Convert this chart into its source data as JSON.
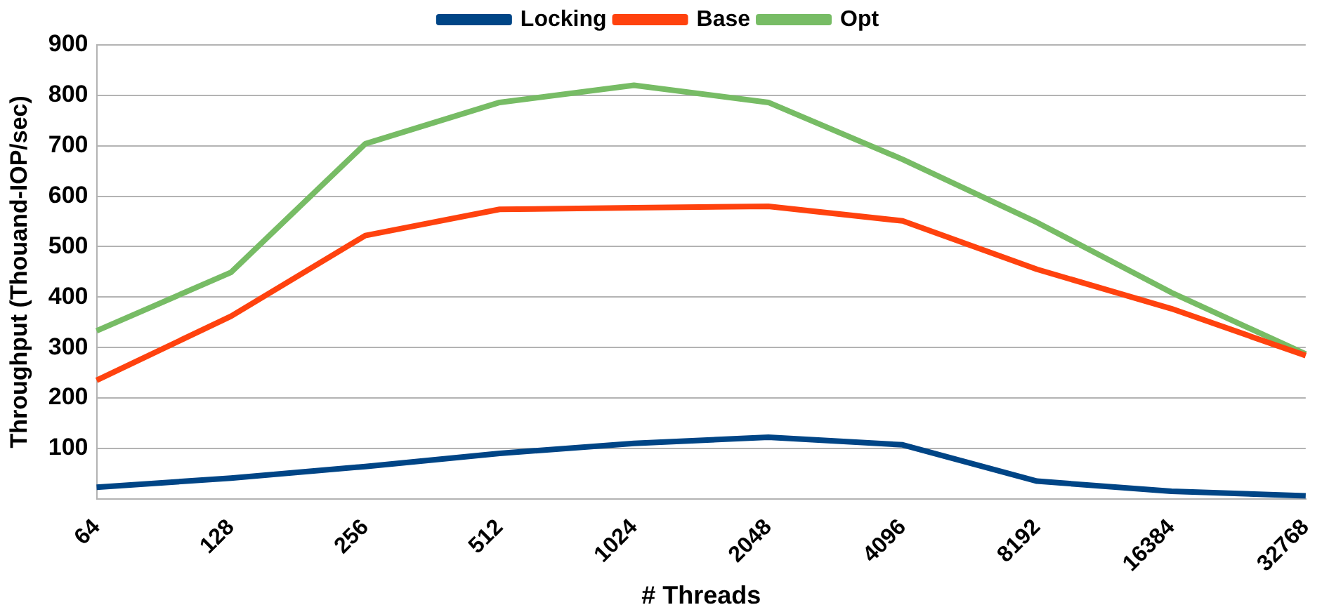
{
  "chart_data": {
    "type": "line",
    "xlabel": "# Threads",
    "ylabel": "Throughput (Thouand-IOP/sec)",
    "categories": [
      "64",
      "128",
      "256",
      "512",
      "1024",
      "2048",
      "4096",
      "8192",
      "16384",
      "32768"
    ],
    "ylim": [
      0,
      900
    ],
    "yticks": [
      {
        "value": 0,
        "label": null
      },
      100,
      200,
      300,
      400,
      500,
      600,
      700,
      800,
      900
    ],
    "grid": "y",
    "legend": "top",
    "marker": "none",
    "line_style": "solid",
    "series": [
      {
        "name": "Locking",
        "color": "#004586",
        "values": [
          23,
          41,
          64,
          90,
          110,
          122,
          107,
          35,
          15,
          6
        ]
      },
      {
        "name": "Base",
        "color": "#ff420e",
        "values": [
          235,
          362,
          522,
          574,
          577,
          580,
          551,
          455,
          377,
          284
        ]
      },
      {
        "name": "Opt",
        "color": "#77bc65",
        "values": [
          333,
          449,
          704,
          786,
          820,
          786,
          673,
          548,
          409,
          287
        ]
      }
    ]
  }
}
